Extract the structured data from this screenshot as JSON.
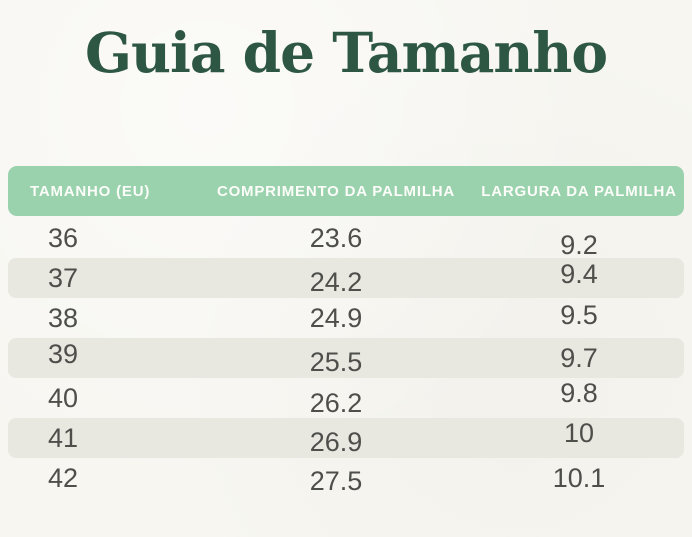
{
  "title": "Guia de Tamanho",
  "theme": {
    "title_color": "#2e5743",
    "header_bg": "#9ad2ae",
    "header_text": "#fcfcf9",
    "row_alt_bg": "#e8e8e0",
    "cell_text": "#4e4e4b",
    "page_bg": "#f7f6f1"
  },
  "chart_data": {
    "type": "table",
    "title": "Guia de Tamanho",
    "columns": [
      "TAMANHO (EU)",
      "COMPRIMENTO DA PALMILHA",
      "LARGURA DA PALMILHA"
    ],
    "rows": [
      [
        "36",
        "23.6",
        "9.2"
      ],
      [
        "37",
        "24.2",
        "9.4"
      ],
      [
        "38",
        "24.9",
        "9.5"
      ],
      [
        "39",
        "25.5",
        "9.7"
      ],
      [
        "40",
        "26.2",
        "9.8"
      ],
      [
        "41",
        "26.9",
        "10"
      ],
      [
        "42",
        "27.5",
        "10.1"
      ]
    ],
    "layout": {
      "zebra_striping": "odd data rows white, even rows light gray",
      "header_style": "mint green rounded bar, white uppercase bold text",
      "column_alignment": [
        "left",
        "center",
        "center"
      ]
    }
  }
}
